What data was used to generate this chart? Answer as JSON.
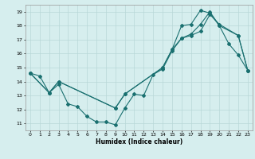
{
  "xlabel": "Humidex (Indice chaleur)",
  "bg_color": "#d6eeee",
  "line_color": "#1a7070",
  "grid_color": "#b8d8d8",
  "xlim": [
    -0.5,
    23.5
  ],
  "ylim": [
    10.5,
    19.5
  ],
  "yticks": [
    11,
    12,
    13,
    14,
    15,
    16,
    17,
    18,
    19
  ],
  "xticks": [
    0,
    1,
    2,
    3,
    4,
    5,
    6,
    7,
    8,
    9,
    10,
    11,
    12,
    13,
    14,
    15,
    16,
    17,
    18,
    19,
    20,
    21,
    22,
    23
  ],
  "line1_x": [
    0,
    1,
    2,
    3,
    4,
    5,
    6,
    7,
    8,
    9,
    10,
    11,
    12,
    13,
    14,
    15,
    16,
    17,
    18,
    19,
    20,
    21,
    22,
    23
  ],
  "line1_y": [
    14.6,
    14.4,
    13.2,
    13.8,
    12.4,
    12.2,
    11.5,
    11.1,
    11.1,
    10.9,
    12.1,
    13.1,
    13.0,
    14.5,
    14.9,
    16.2,
    17.1,
    17.4,
    18.1,
    19.0,
    18.0,
    16.7,
    15.9,
    14.8
  ],
  "line2_x": [
    0,
    2,
    3,
    9,
    10,
    14,
    15,
    16,
    17,
    18,
    19,
    20,
    22,
    23
  ],
  "line2_y": [
    14.6,
    13.2,
    14.0,
    12.1,
    13.1,
    15.0,
    16.3,
    17.1,
    17.3,
    17.6,
    18.8,
    18.1,
    17.3,
    14.8
  ],
  "line3_x": [
    0,
    2,
    3,
    9,
    10,
    14,
    15,
    16,
    17,
    18,
    19,
    20,
    22,
    23
  ],
  "line3_y": [
    14.6,
    13.2,
    14.0,
    12.1,
    13.1,
    15.0,
    16.3,
    18.0,
    18.1,
    19.1,
    18.9,
    18.0,
    17.3,
    14.8
  ]
}
